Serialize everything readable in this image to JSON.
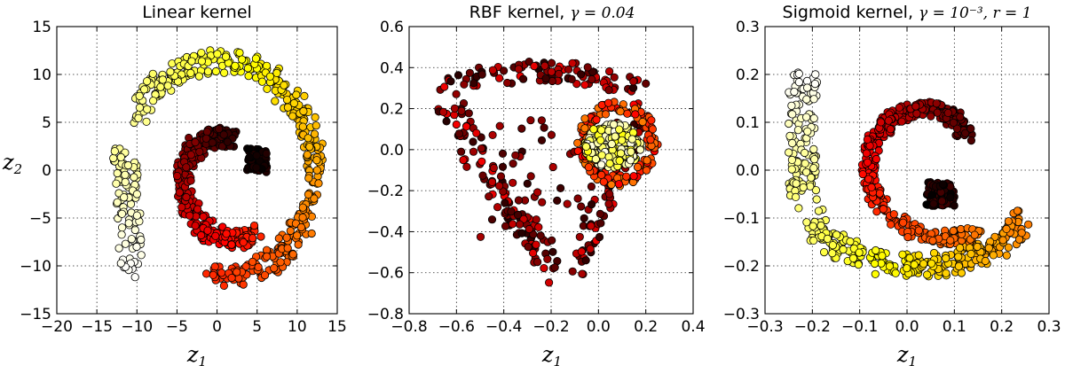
{
  "chart_data": [
    {
      "type": "scatter",
      "title": "Linear kernel",
      "title_math": "",
      "xlabel": "z1",
      "ylabel": "z2",
      "xlim": [
        -20,
        15
      ],
      "ylim": [
        -15,
        15
      ],
      "xticks": [
        -20,
        -15,
        -10,
        -5,
        0,
        5,
        10,
        15
      ],
      "yticks": [
        -15,
        -10,
        -5,
        0,
        5,
        10,
        15
      ],
      "grid": true,
      "colormap": "hot",
      "shape": "swiss-roll spiral",
      "arms": [
        {
          "cx": 0.5,
          "cy": -1,
          "r0": 12.5,
          "r1": 5.5,
          "a0": 240,
          "a1": -380,
          "w": 1.1
        },
        {
          "cx": 1.5,
          "cy": -1,
          "r0": 7,
          "r1": 6.2,
          "a0": 160,
          "a1": 20,
          "w": 0.9
        }
      ]
    },
    {
      "type": "scatter",
      "title": "RBF kernel, ",
      "title_math": "γ = 0.04",
      "xlabel": "z1",
      "ylabel": "",
      "xlim": [
        -0.8,
        0.4
      ],
      "ylim": [
        -0.8,
        0.6
      ],
      "xticks": [
        -0.8,
        -0.6,
        -0.4,
        -0.2,
        0.0,
        0.2,
        0.4
      ],
      "yticks": [
        -0.8,
        -0.6,
        -0.4,
        -0.2,
        0.0,
        0.2,
        0.4,
        0.6
      ],
      "grid": true,
      "colormap": "hot",
      "shape": "triangular cluster with dense yellow blob at right"
    },
    {
      "type": "scatter",
      "title": "Sigmoid kernel, ",
      "title_math": "γ = 10⁻³, r = 1",
      "xlabel": "z1",
      "ylabel": "",
      "xlim": [
        -0.3,
        0.3
      ],
      "ylim": [
        -0.3,
        0.3
      ],
      "xticks": [
        -0.3,
        -0.2,
        -0.1,
        0.0,
        0.1,
        0.2,
        0.3
      ],
      "yticks": [
        -0.3,
        -0.2,
        -0.1,
        0.0,
        0.1,
        0.2,
        0.3
      ],
      "grid": true,
      "colormap": "hot",
      "shape": "spiral"
    }
  ]
}
